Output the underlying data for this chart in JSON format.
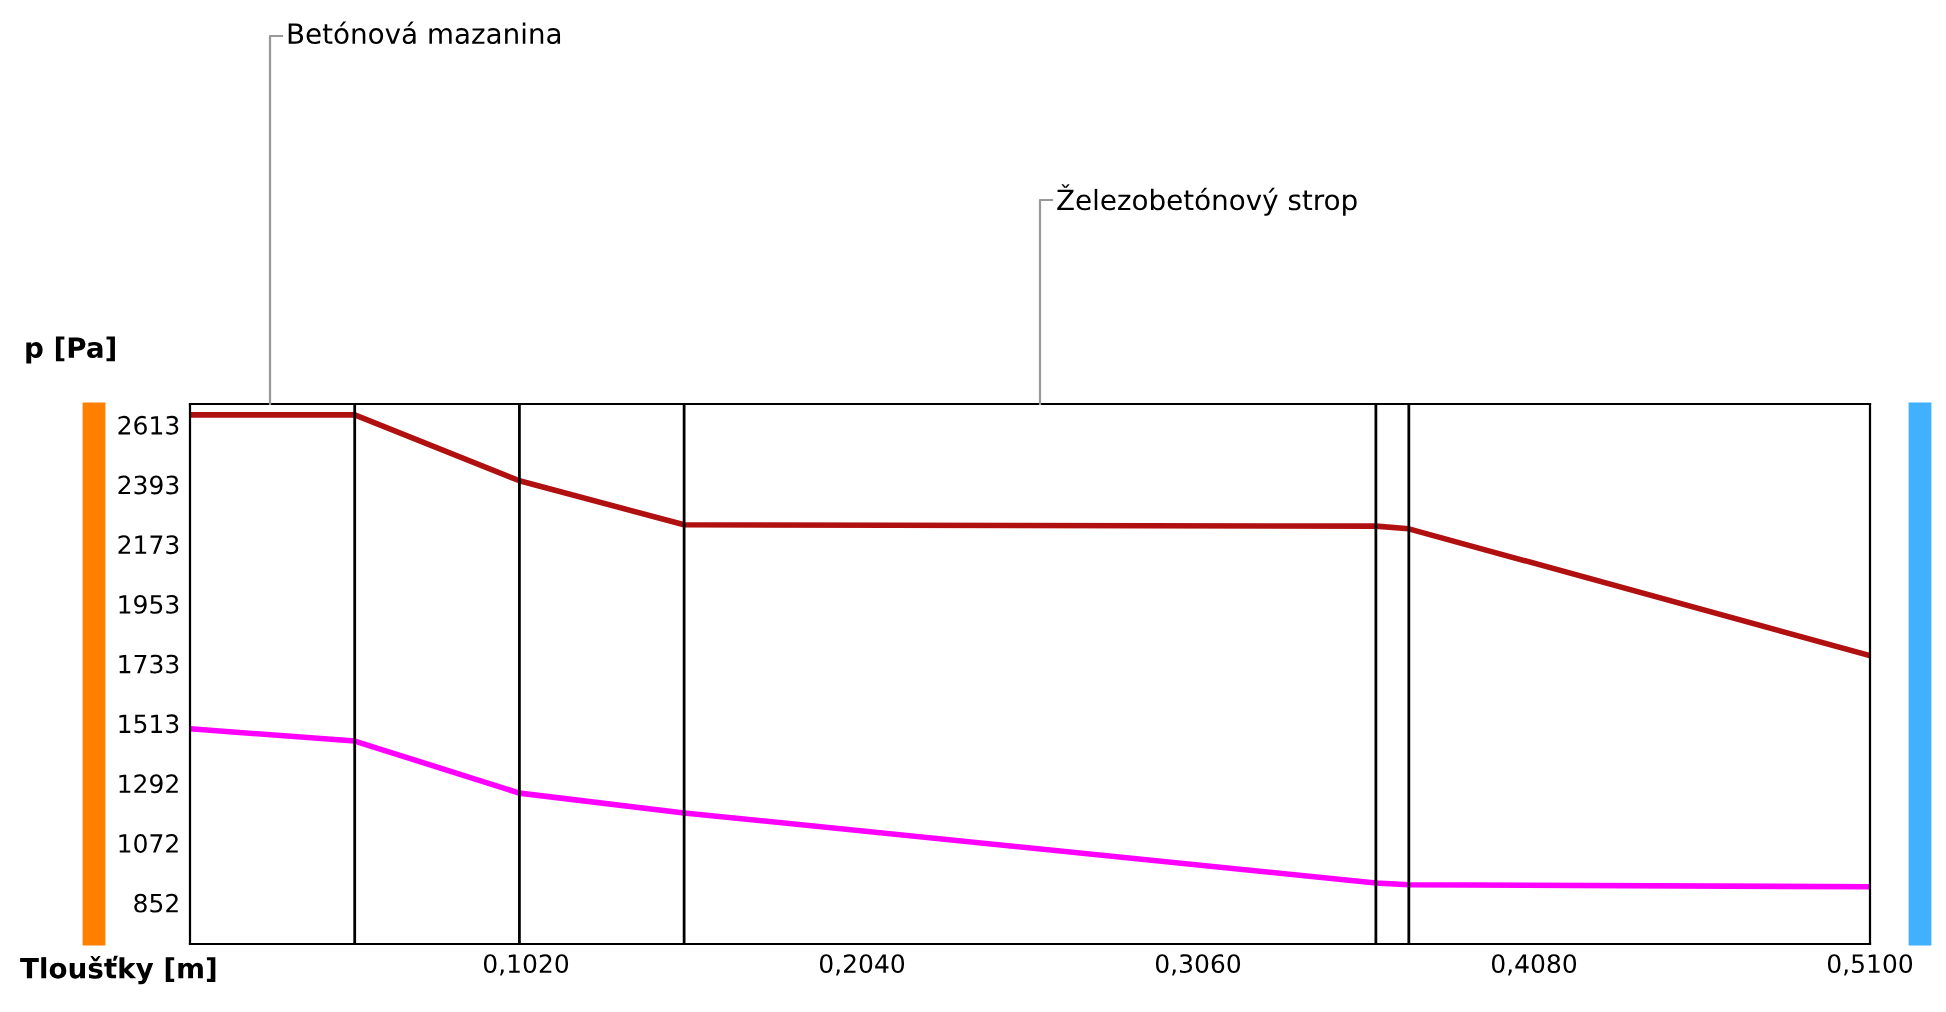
{
  "chart_data": {
    "type": "line",
    "xlabel": "Tloušťky [m]",
    "ylabel": "p [Pa]",
    "xlim": [
      0,
      0.51
    ],
    "ylim": [
      700,
      2690
    ],
    "xticks": [
      {
        "value": 0.102,
        "label": "0,1020"
      },
      {
        "value": 0.204,
        "label": "0,2040"
      },
      {
        "value": 0.306,
        "label": "0,3060"
      },
      {
        "value": 0.408,
        "label": "0,4080"
      },
      {
        "value": 0.51,
        "label": "0,5100"
      }
    ],
    "yticks": [
      852,
      1072,
      1292,
      1513,
      1733,
      1953,
      2173,
      2393,
      2613
    ],
    "x": [
      0,
      0.05,
      0.1,
      0.15,
      0.36,
      0.37,
      0.51
    ],
    "series": [
      {
        "color": "#b01010",
        "values": [
          2650,
          2650,
          2407,
          2245,
          2240,
          2230,
          1763
        ]
      },
      {
        "color": "#ff00ff",
        "values": [
          1493,
          1448,
          1256,
          1183,
          925,
          918,
          911
        ]
      }
    ],
    "ref_lines": [
      {
        "axis": "x",
        "value": 0.05,
        "color": "#000000"
      },
      {
        "axis": "x",
        "value": 0.1,
        "color": "#000000"
      },
      {
        "axis": "x",
        "value": 0.15,
        "color": "#000000"
      },
      {
        "axis": "x",
        "value": 0.36,
        "color": "#000000"
      },
      {
        "axis": "x",
        "value": 0.37,
        "color": "#000000"
      }
    ],
    "annotations": [
      "Betónová mazanina",
      "Železobetónový strop"
    ],
    "grid": false,
    "legend": false,
    "marker": "none",
    "line_style": "solid"
  }
}
